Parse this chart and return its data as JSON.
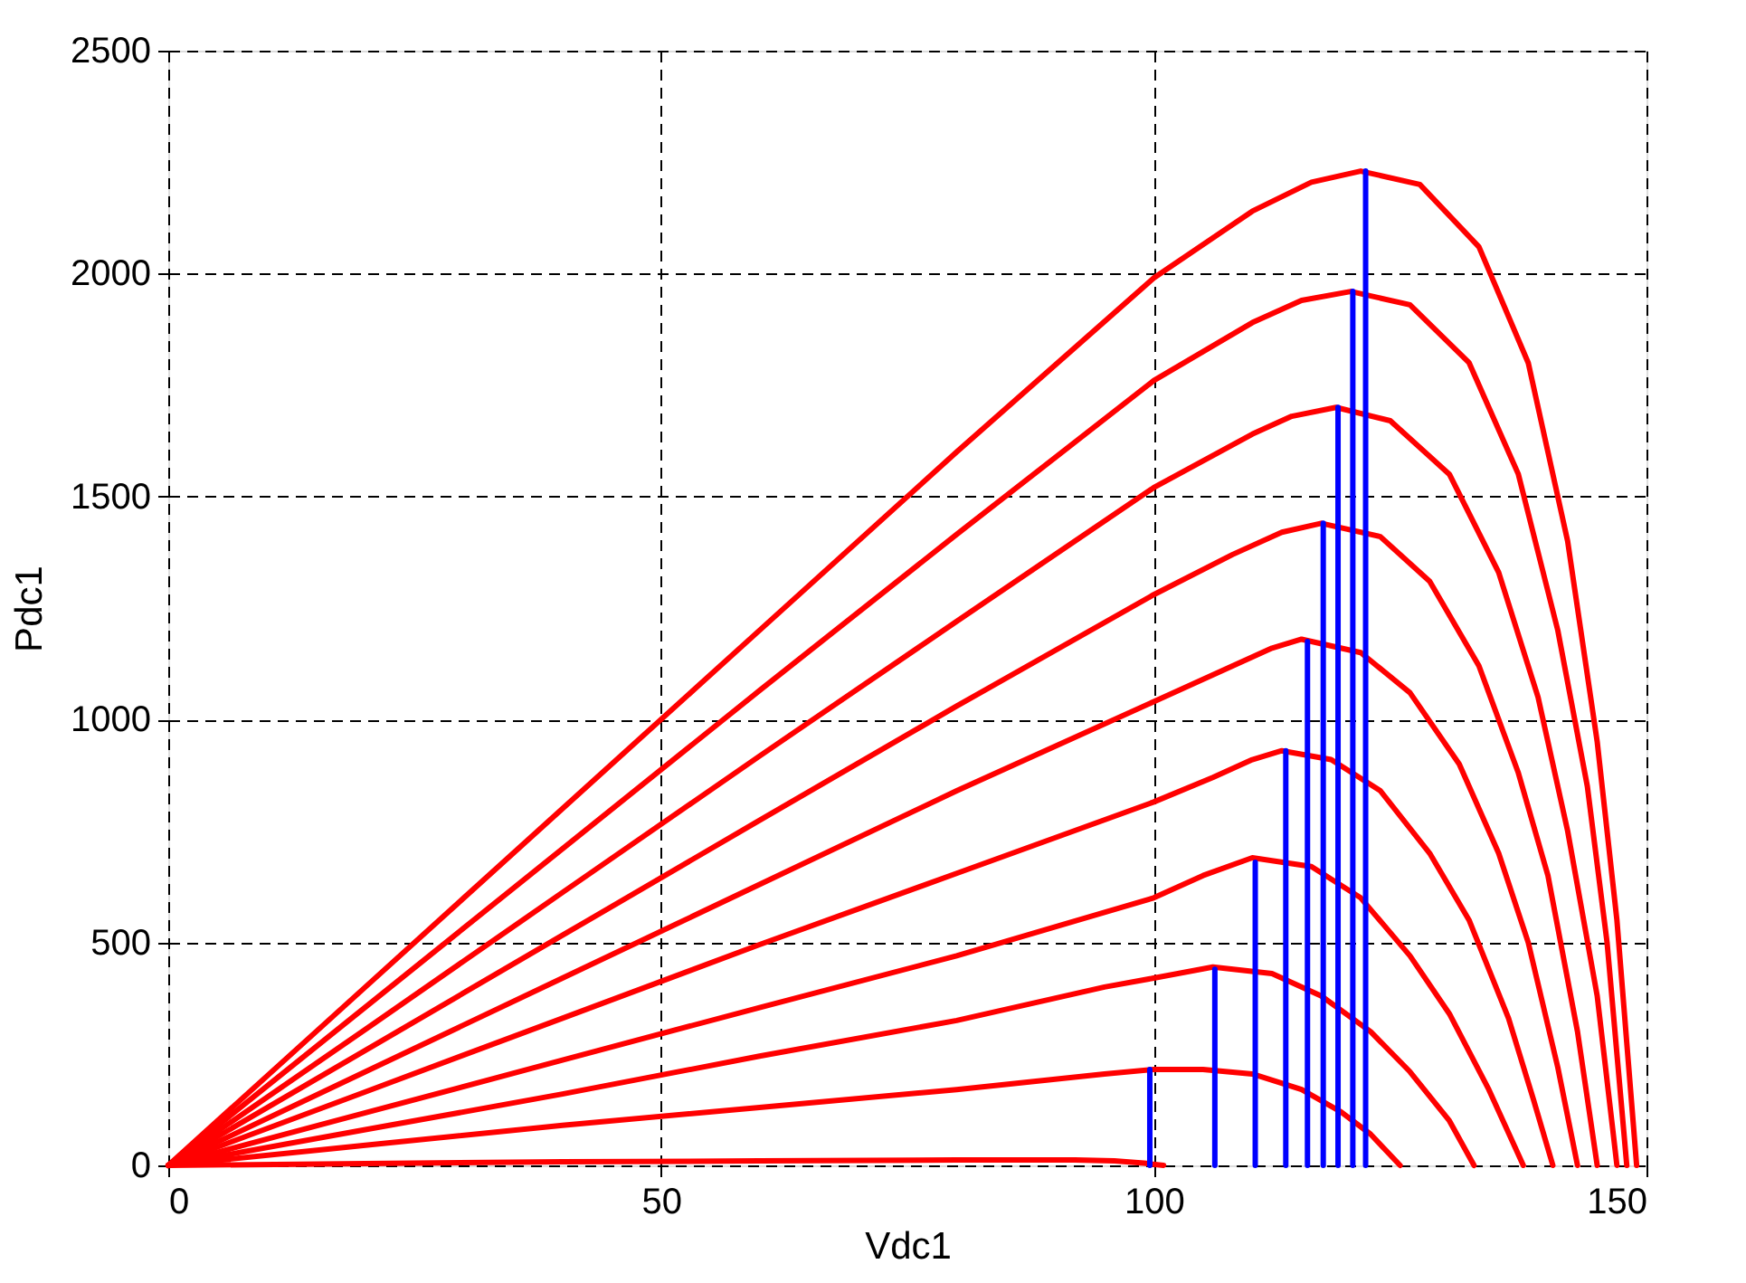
{
  "chart_data": {
    "type": "line",
    "xlabel": "Vdc1",
    "ylabel": "Pdc1",
    "xlim": [
      0,
      150
    ],
    "ylim": [
      0,
      2500
    ],
    "xticks": [
      0,
      50,
      100,
      150
    ],
    "yticks": [
      0,
      500,
      1000,
      1500,
      2000,
      2500
    ],
    "grid": true,
    "line_style": "solid",
    "marker": "none",
    "series": [
      {
        "color": "#ff0000",
        "x": [
          0,
          20,
          40,
          60,
          80,
          100,
          110,
          116,
          121,
          127,
          133,
          138,
          142,
          145,
          147,
          149
        ],
        "values": [
          0,
          400,
          800,
          1200,
          1600,
          1990,
          2140,
          2205,
          2230,
          2200,
          2060,
          1800,
          1400,
          950,
          550,
          0
        ]
      },
      {
        "color": "#ff0000",
        "x": [
          0,
          20,
          40,
          60,
          80,
          100,
          110,
          115,
          120,
          126,
          132,
          137,
          141,
          144,
          146,
          148
        ],
        "values": [
          0,
          355,
          710,
          1065,
          1415,
          1760,
          1890,
          1940,
          1960,
          1930,
          1800,
          1550,
          1200,
          850,
          500,
          0
        ]
      },
      {
        "color": "#ff0000",
        "x": [
          0,
          20,
          40,
          60,
          80,
          100,
          110,
          114,
          118.5,
          124,
          130,
          135,
          139,
          142,
          145,
          147
        ],
        "values": [
          0,
          305,
          612,
          918,
          1220,
          1520,
          1640,
          1680,
          1700,
          1670,
          1550,
          1330,
          1050,
          750,
          380,
          0
        ]
      },
      {
        "color": "#ff0000",
        "x": [
          0,
          20,
          40,
          60,
          80,
          100,
          108,
          113,
          117,
          123,
          128,
          133,
          137,
          140,
          143,
          145
        ],
        "values": [
          0,
          258,
          516,
          774,
          1030,
          1280,
          1370,
          1420,
          1440,
          1410,
          1310,
          1120,
          880,
          650,
          300,
          0
        ]
      },
      {
        "color": "#ff0000",
        "x": [
          0,
          20,
          40,
          60,
          80,
          100,
          108,
          112,
          115,
          121,
          126,
          131,
          135,
          138,
          141,
          143
        ],
        "values": [
          0,
          210,
          420,
          630,
          840,
          1040,
          1120,
          1160,
          1180,
          1150,
          1060,
          900,
          700,
          500,
          220,
          0
        ]
      },
      {
        "color": "#ff0000",
        "x": [
          0,
          20,
          40,
          60,
          80,
          100,
          106,
          110,
          113,
          118,
          123,
          128,
          132,
          136,
          138.5,
          140.5
        ],
        "values": [
          0,
          165,
          330,
          495,
          655,
          815,
          870,
          910,
          930,
          910,
          840,
          700,
          550,
          330,
          150,
          0
        ]
      },
      {
        "color": "#ff0000",
        "x": [
          0,
          20,
          40,
          60,
          80,
          100,
          105,
          110,
          116,
          121,
          126,
          130,
          134,
          137.5
        ],
        "values": [
          0,
          118,
          236,
          354,
          470,
          600,
          650,
          690,
          670,
          600,
          470,
          340,
          170,
          0
        ]
      },
      {
        "color": "#ff0000",
        "x": [
          0,
          20,
          40,
          60,
          80,
          95,
          100,
          106,
          112,
          117,
          122,
          126,
          130,
          132.5
        ],
        "values": [
          0,
          80,
          160,
          245,
          325,
          400,
          420,
          445,
          430,
          380,
          300,
          210,
          100,
          0
        ]
      },
      {
        "color": "#ff0000",
        "x": [
          0,
          20,
          40,
          60,
          80,
          95,
          100,
          105,
          110,
          115,
          119,
          122,
          125
        ],
        "values": [
          0,
          45,
          90,
          130,
          170,
          205,
          215,
          215,
          205,
          170,
          120,
          70,
          0
        ]
      },
      {
        "color": "#ff0000",
        "x": [
          0,
          20,
          40,
          60,
          80,
          92,
          96,
          99,
          101
        ],
        "values": [
          0,
          4,
          8,
          10,
          12,
          12,
          10,
          5,
          0
        ]
      },
      {
        "color": "#0000ff",
        "x": [
          99.6,
          99.6
        ],
        "values": [
          0,
          215
        ]
      },
      {
        "color": "#0000ff",
        "x": [
          106.2,
          106.2
        ],
        "values": [
          0,
          440
        ]
      },
      {
        "color": "#0000ff",
        "x": [
          110.3,
          110.3
        ],
        "values": [
          0,
          680
        ]
      },
      {
        "color": "#0000ff",
        "x": [
          113.4,
          113.4
        ],
        "values": [
          0,
          930
        ]
      },
      {
        "color": "#0000ff",
        "x": [
          115.6,
          115.6
        ],
        "values": [
          0,
          1175
        ]
      },
      {
        "color": "#0000ff",
        "x": [
          117.2,
          117.2
        ],
        "values": [
          0,
          1440
        ]
      },
      {
        "color": "#0000ff",
        "x": [
          118.7,
          118.7
        ],
        "values": [
          0,
          1700
        ]
      },
      {
        "color": "#0000ff",
        "x": [
          120.2,
          120.2
        ],
        "values": [
          0,
          1960
        ]
      },
      {
        "color": "#0000ff",
        "x": [
          121.5,
          121.5
        ],
        "values": [
          0,
          2230
        ]
      }
    ]
  }
}
